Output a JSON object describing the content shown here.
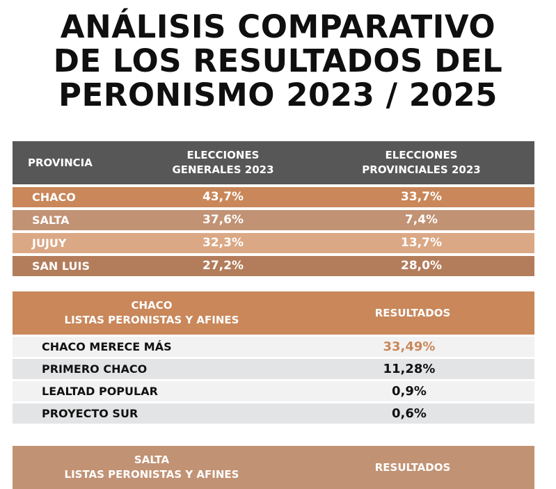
{
  "title": {
    "line1": "ANÁLISIS COMPARATIVO",
    "line2": "DE LOS RESULTADOS DEL",
    "line3": "PERONISMO 2023 / 2025"
  },
  "comparison_table": {
    "headers": {
      "provincia": "PROVINCIA",
      "generales_1": "ELECCIONES",
      "generales_2": "GENERALES 2023",
      "provinciales_1": "ELECCIONES",
      "provinciales_2": "PROVINCIALES 2023"
    },
    "rows": [
      {
        "provincia": "CHACO",
        "generales": "43,7%",
        "provinciales": "33,7%",
        "color": "#c9875a"
      },
      {
        "provincia": "SALTA",
        "generales": "37,6%",
        "provinciales": "7,4%",
        "color": "#c19274"
      },
      {
        "provincia": "JUJUY",
        "generales": "32,3%",
        "provinciales": "13,7%",
        "color": "#dba885"
      },
      {
        "provincia": "SAN LUIS",
        "generales": "27,2%",
        "provinciales": "28,0%",
        "color": "#b37d5b"
      }
    ],
    "header_color": "#575757"
  },
  "chaco_section": {
    "name": "CHACO",
    "subtitle": "LISTAS PERONISTAS Y AFINES",
    "results_label": "RESULTADOS",
    "header_color": "#c9875a",
    "rows": [
      {
        "name": "CHACO MERECE MÁS",
        "value": "33,49%",
        "highlight": true
      },
      {
        "name": "PRIMERO CHACO",
        "value": "11,28%",
        "highlight": false
      },
      {
        "name": "LEALTAD POPULAR",
        "value": "0,9%",
        "highlight": false
      },
      {
        "name": "PROYECTO SUR",
        "value": "0,6%",
        "highlight": false
      }
    ]
  },
  "salta_section": {
    "name": "SALTA",
    "subtitle": "LISTAS PERONISTAS Y AFINES",
    "results_label": "RESULTADOS",
    "header_color": "#c19274"
  },
  "colors": {
    "highlight_text": "#c9875a",
    "row_light": "#f2f2f2",
    "row_dark": "#e3e4e5"
  }
}
